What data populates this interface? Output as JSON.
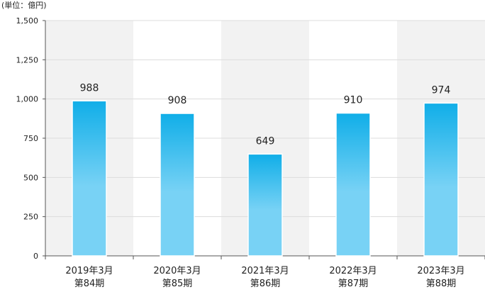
{
  "colors": {
    "bar_top": "#10aee8",
    "bar_bottom": "#78d2f5",
    "band_shade": "#f2f2f2",
    "gridline": "#dcdcdc",
    "axis": "#555555",
    "text": "#222222",
    "bar_outline": "#ffffff"
  },
  "chart_data": {
    "type": "bar",
    "unit_label": "(単位：億円)",
    "categories": [
      {
        "line1": "2019年3月",
        "line2": "第84期"
      },
      {
        "line1": "2020年3月",
        "line2": "第85期"
      },
      {
        "line1": "2021年3月",
        "line2": "第86期"
      },
      {
        "line1": "2022年3月",
        "line2": "第87期"
      },
      {
        "line1": "2023年3月",
        "line2": "第88期"
      }
    ],
    "values": [
      988,
      908,
      649,
      910,
      974
    ],
    "data_labels": [
      "988",
      "908",
      "649",
      "910",
      "974"
    ],
    "ylim": [
      0,
      1500
    ],
    "yticks": [
      0,
      250,
      500,
      750,
      1000,
      1250,
      1500
    ],
    "ytick_labels": [
      "0",
      "250",
      "500",
      "750",
      "1,000",
      "1,250",
      "1,500"
    ],
    "shaded_categories": [
      0,
      2,
      4
    ],
    "grid": true,
    "legend": "none"
  }
}
